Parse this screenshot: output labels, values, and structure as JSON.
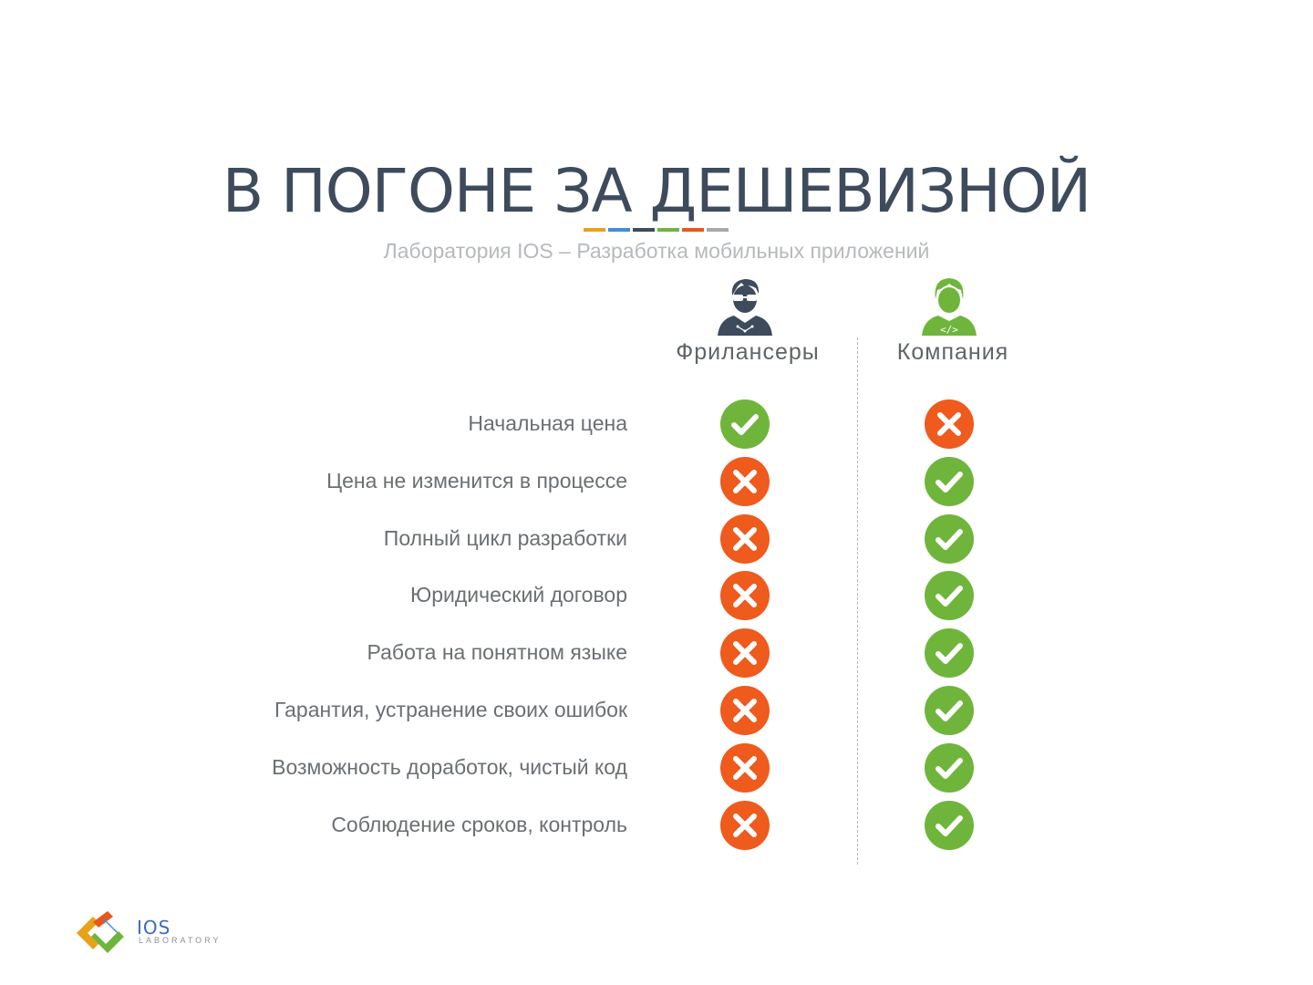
{
  "header": {
    "title": "В ПОГОНЕ ЗА ДЕШЕВИЗНОЙ",
    "subtitle": "Лаборатория IOS – Разработка мобильных приложений",
    "stripe_colors": [
      "#e8a21a",
      "#3f8fd2",
      "#3d4b5c",
      "#6fb53c",
      "#e8571c",
      "#a7a9ac"
    ]
  },
  "columns": {
    "freelancers": {
      "label": "Фрилансеры",
      "icon": "freelancer-avatar-icon",
      "color": "#3d4b5c"
    },
    "company": {
      "label": "Компания",
      "icon": "developer-avatar-icon",
      "color": "#6fb53c"
    }
  },
  "status_colors": {
    "yes": "#6fb53c",
    "no": "#ef5a1d"
  },
  "rows": [
    {
      "label": "Начальная цена",
      "freelancers": "yes",
      "company": "no"
    },
    {
      "label": "Цена не изменится в процессе",
      "freelancers": "no",
      "company": "yes"
    },
    {
      "label": "Полный цикл разработки",
      "freelancers": "no",
      "company": "yes"
    },
    {
      "label": "Юридический договор",
      "freelancers": "no",
      "company": "yes"
    },
    {
      "label": "Работа на понятном языке",
      "freelancers": "no",
      "company": "yes"
    },
    {
      "label": "Гарантия, устранение своих ошибок",
      "freelancers": "no",
      "company": "yes"
    },
    {
      "label": "Возможность доработок, чистый код",
      "freelancers": "no",
      "company": "yes"
    },
    {
      "label": "Соблюдение сроков, контроль",
      "freelancers": "no",
      "company": "yes"
    }
  ],
  "logo": {
    "text": "IOS",
    "subtext": "LABORATORY"
  }
}
